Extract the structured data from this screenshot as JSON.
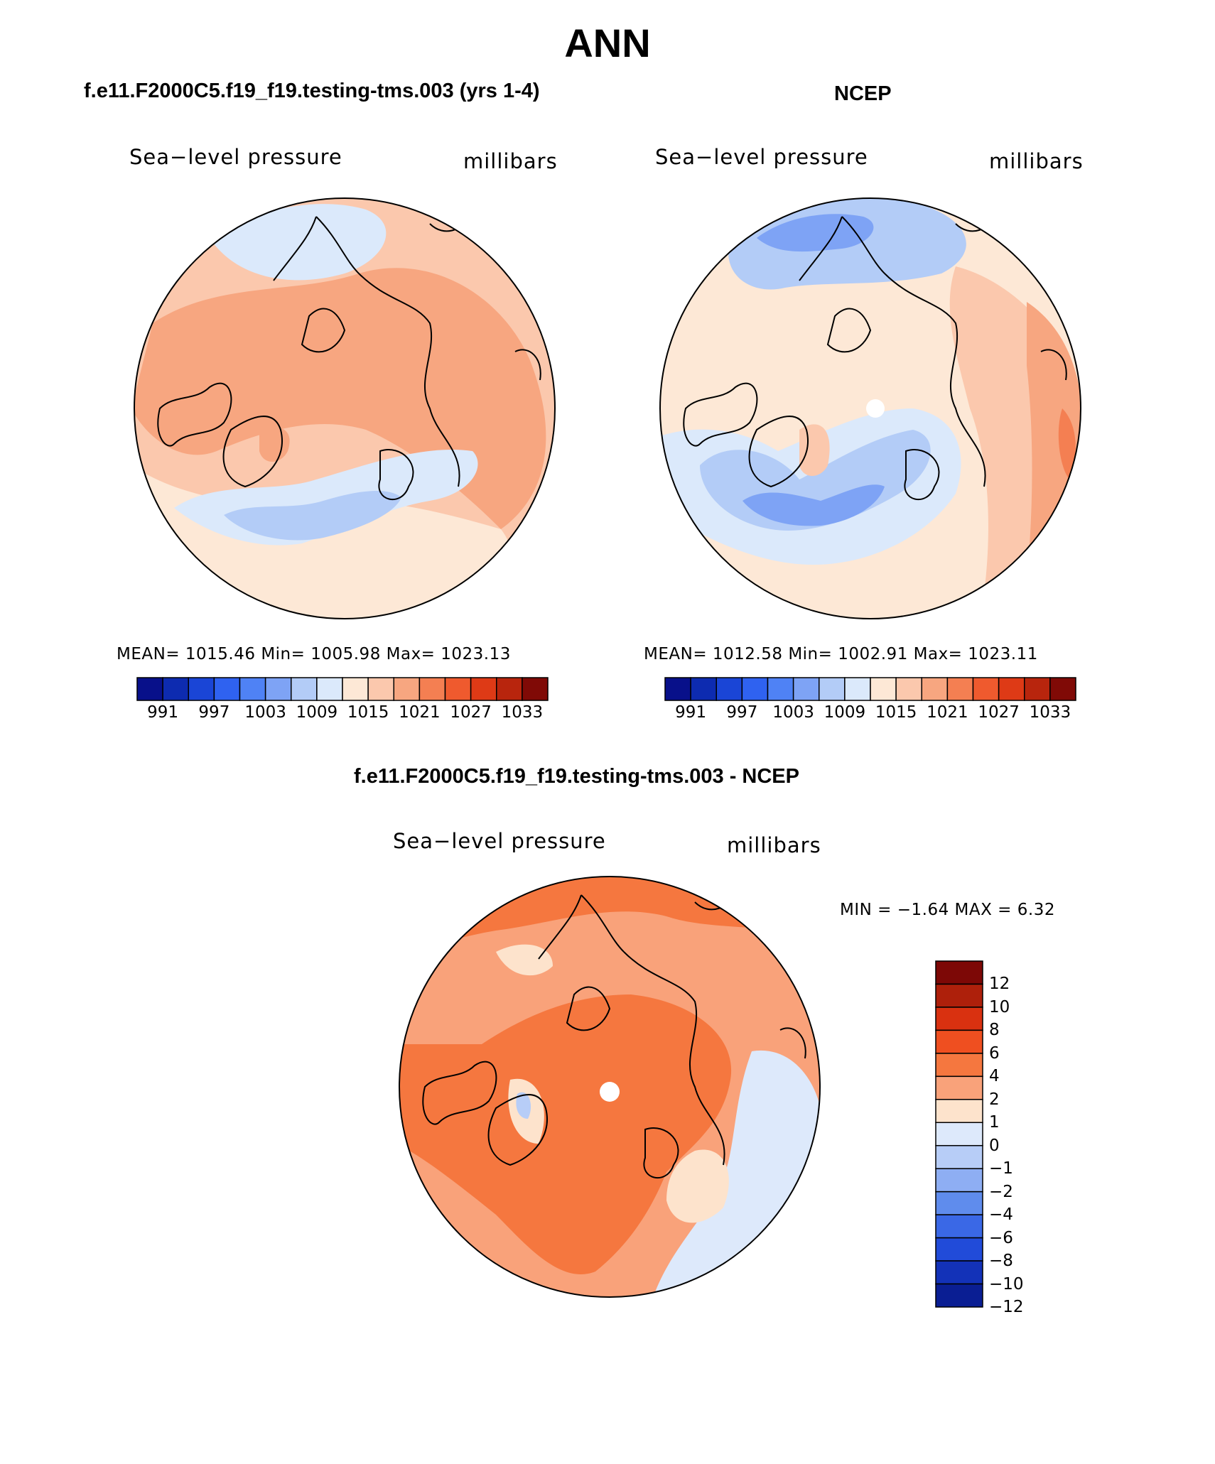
{
  "page": {
    "title": "ANN"
  },
  "panels": {
    "model": {
      "title": "f.e11.F2000C5.f19_f19.testing-tms.003 (yrs 1-4)",
      "variable": "Sea−level pressure",
      "units": "millibars",
      "stats": "MEAN=  1015.46   Min=  1005.98   Max=  1023.13"
    },
    "obs": {
      "title": "NCEP",
      "variable": "Sea−level pressure",
      "units": "millibars",
      "stats": "MEAN=  1012.58   Min=  1002.91   Max=  1023.11"
    },
    "diff": {
      "title": "f.e11.F2000C5.f19_f19.testing-tms.003 - NCEP",
      "variable": "Sea−level pressure",
      "units": "millibars",
      "stats": "MIN =   −1.64  MAX =    6.32"
    }
  },
  "colorbar_abs": {
    "colors": [
      "#08108a",
      "#0d2bb0",
      "#1a45d6",
      "#2f62f0",
      "#4f82f5",
      "#7ea3f5",
      "#b3ccf7",
      "#dbe9fb",
      "#fde8d6",
      "#fbc8ad",
      "#f7a680",
      "#f47f52",
      "#ef5a2e",
      "#de3a16",
      "#b8250d",
      "#800a06"
    ],
    "tick_labels": [
      "991",
      "997",
      "1003",
      "1009",
      "1015",
      "1021",
      "1027",
      "1033"
    ]
  },
  "colorbar_diff": {
    "colors": [
      "#7d0806",
      "#ae200b",
      "#d93110",
      "#ef4f20",
      "#f5773f",
      "#f9a27a",
      "#fde3cc",
      "#dde9fb",
      "#b7cdf7",
      "#8eaef3",
      "#5f8ced",
      "#3a68e6",
      "#214bd9",
      "#1332b8",
      "#0a1e93"
    ],
    "tick_labels": [
      "12",
      "10",
      "8",
      "6",
      "4",
      "2",
      "1",
      "0",
      "−1",
      "−2",
      "−4",
      "−6",
      "−8",
      "−10",
      "−12"
    ]
  },
  "chart_data": [
    {
      "type": "heatmap",
      "title": "f.e11.F2000C5.f19_f19.testing-tms.003 (yrs 1-4)",
      "variable": "Sea−level pressure",
      "units": "millibars",
      "projection": "north polar stereographic",
      "mean": 1015.46,
      "min": 1005.98,
      "max": 1023.13,
      "contour_levels": [
        991,
        994,
        997,
        1000,
        1003,
        1006,
        1009,
        1012,
        1015,
        1018,
        1021,
        1024,
        1027,
        1030,
        1033
      ]
    },
    {
      "type": "heatmap",
      "title": "NCEP",
      "variable": "Sea−level pressure",
      "units": "millibars",
      "projection": "north polar stereographic",
      "mean": 1012.58,
      "min": 1002.91,
      "max": 1023.11,
      "contour_levels": [
        991,
        994,
        997,
        1000,
        1003,
        1006,
        1009,
        1012,
        1015,
        1018,
        1021,
        1024,
        1027,
        1030,
        1033
      ]
    },
    {
      "type": "heatmap",
      "title": "f.e11.F2000C5.f19_f19.testing-tms.003 - NCEP",
      "variable": "Sea−level pressure",
      "units": "millibars",
      "projection": "north polar stereographic",
      "min": -1.64,
      "max": 6.32,
      "contour_levels": [
        -12,
        -10,
        -8,
        -6,
        -4,
        -2,
        -1,
        0,
        1,
        2,
        4,
        6,
        8,
        10,
        12
      ]
    }
  ]
}
